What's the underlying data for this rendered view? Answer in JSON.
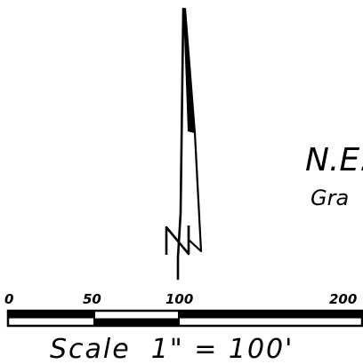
{
  "north_arrow": {
    "icon": "north-arrow-icon"
  },
  "title_text": {
    "line1": "N.E.",
    "line2": "Gra"
  },
  "scale_bar": {
    "tick_labels": [
      "0",
      "50",
      "100",
      "200"
    ],
    "caption": "Scale  1\" = 100'",
    "units": "feet"
  },
  "colors": {
    "ink": "#000000",
    "paper": "#ffffff"
  }
}
